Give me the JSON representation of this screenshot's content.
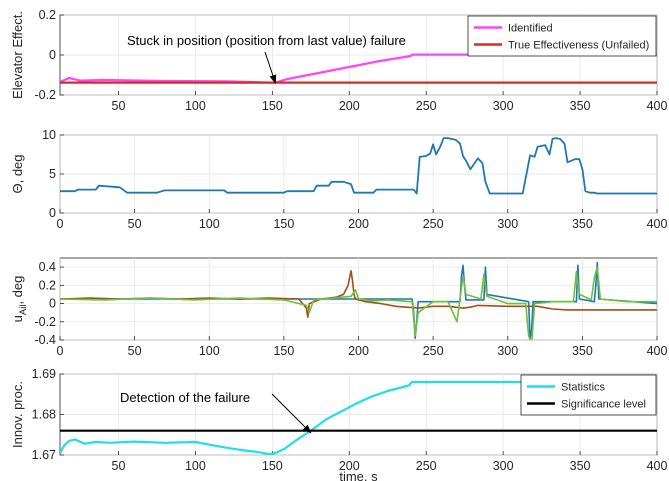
{
  "chart_data": [
    {
      "type": "line",
      "ylabel": "Elevator Effect.",
      "xlim": [
        12,
        400
      ],
      "ylim": [
        -0.2,
        0.2
      ],
      "xticks": [
        50,
        100,
        150,
        200,
        250,
        300,
        350,
        400
      ],
      "yticks": [
        -0.2,
        0,
        0.2
      ],
      "ytick_labels": [
        "-0.2",
        "0",
        "0.2"
      ],
      "grid": true,
      "legend": {
        "placement": "top-right"
      },
      "annotation": {
        "text": "Stuck in position (position from last value) failure",
        "points_to": [
          152,
          -0.14
        ]
      },
      "series": [
        {
          "name": "Identified",
          "color": "#ff44ff",
          "x": [
            12,
            18,
            25,
            40,
            80,
            120,
            150,
            152,
            160,
            180,
            200,
            220,
            240,
            241,
            300,
            400
          ],
          "y": [
            -0.135,
            -0.115,
            -0.128,
            -0.125,
            -0.13,
            -0.132,
            -0.138,
            -0.138,
            -0.12,
            -0.09,
            -0.06,
            -0.03,
            -0.005,
            0.002,
            0.002,
            0.002
          ]
        },
        {
          "name": "True Effectiveness (Unfailed)",
          "color": "#d62d20",
          "x": [
            12,
            400
          ],
          "y": [
            -0.138,
            -0.138
          ]
        }
      ]
    },
    {
      "type": "line",
      "ylabel": "Θ, deg",
      "xlim": [
        0,
        400
      ],
      "ylim": [
        0,
        10
      ],
      "xticks": [
        0,
        50,
        100,
        150,
        200,
        250,
        300,
        350,
        400
      ],
      "yticks": [
        0,
        5,
        10
      ],
      "ytick_labels": [
        "0",
        "5",
        "10"
      ],
      "grid": true,
      "series": [
        {
          "name": "",
          "color": "#1f77b4",
          "x": [
            0,
            10,
            12,
            24,
            26,
            40,
            45,
            65,
            70,
            110,
            112,
            150,
            152,
            170,
            172,
            180,
            182,
            190,
            195,
            197,
            210,
            212,
            237,
            239,
            241,
            245,
            248,
            250,
            252,
            255,
            257,
            260,
            262,
            265,
            268,
            270,
            272,
            275,
            280,
            283,
            285,
            288,
            290,
            310,
            315,
            318,
            320,
            325,
            328,
            330,
            332,
            335,
            338,
            340,
            345,
            348,
            350,
            352,
            355,
            358,
            360,
            365,
            400
          ],
          "y": [
            2.8,
            2.8,
            3.0,
            3.0,
            3.5,
            3.3,
            2.6,
            2.6,
            2.9,
            2.9,
            2.6,
            2.6,
            2.8,
            2.8,
            3.5,
            3.5,
            4.0,
            4.0,
            3.7,
            2.6,
            2.6,
            3.0,
            3.0,
            2.5,
            7.2,
            7.3,
            7.6,
            8.8,
            7.5,
            8.6,
            9.6,
            9.6,
            9.5,
            9.4,
            8.9,
            7.3,
            6.7,
            5.6,
            7.0,
            6.4,
            4.0,
            2.5,
            2.5,
            2.5,
            7.4,
            7.2,
            8.5,
            8.7,
            7.5,
            9.5,
            9.6,
            9.5,
            8.9,
            6.5,
            6.9,
            6.9,
            5.6,
            2.8,
            2.6,
            2.6,
            2.5,
            2.5,
            2.5
          ]
        }
      ]
    },
    {
      "type": "line",
      "ylabel": "u_Ail, deg",
      "xlim": [
        0,
        400
      ],
      "ylim": [
        -0.4,
        0.5
      ],
      "xticks": [
        0,
        50,
        100,
        150,
        200,
        250,
        300,
        350,
        400
      ],
      "yticks": [
        -0.4,
        -0.2,
        0,
        0.2,
        0.4
      ],
      "ytick_labels": [
        "-0.4",
        "-0.2",
        "0",
        "0.2",
        "0.4"
      ],
      "grid": true,
      "series": [
        {
          "name": "",
          "color": "#1f77b4",
          "x": [
            0,
            236,
            237,
            238,
            239,
            240,
            268,
            269,
            270,
            271,
            272,
            284,
            285,
            286,
            314,
            315,
            316,
            317,
            346,
            347,
            348,
            358,
            359,
            360,
            361,
            400
          ],
          "y": [
            0.05,
            0.05,
            -0.1,
            -0.38,
            -0.2,
            0.02,
            0.02,
            0.3,
            0.42,
            0.2,
            0.04,
            0.04,
            0.4,
            0.1,
            0.02,
            -0.38,
            -0.3,
            0.02,
            0.02,
            0.42,
            0.05,
            0.02,
            0.2,
            0.45,
            0.05,
            0.0
          ]
        },
        {
          "name": "",
          "color": "#a84d1a",
          "x": [
            0,
            20,
            40,
            60,
            80,
            100,
            120,
            140,
            160,
            165,
            166,
            167,
            175,
            185,
            190,
            193,
            195,
            196,
            197,
            198,
            200,
            205,
            215,
            225,
            240,
            250,
            260,
            270,
            275,
            280,
            300,
            320,
            330,
            340,
            360,
            380,
            400
          ],
          "y": [
            0.05,
            0.06,
            0.05,
            0.06,
            0.05,
            0.06,
            0.05,
            0.06,
            0.05,
            -0.05,
            -0.15,
            0.0,
            0.05,
            0.07,
            0.1,
            0.2,
            0.36,
            0.25,
            0.1,
            0.05,
            0.04,
            0.02,
            0.0,
            -0.03,
            -0.05,
            -0.03,
            -0.03,
            -0.05,
            -0.04,
            -0.02,
            -0.03,
            -0.03,
            -0.06,
            -0.07,
            -0.07,
            -0.07,
            -0.07
          ]
        },
        {
          "name": "",
          "color": "#6dc03c",
          "x": [
            0,
            30,
            60,
            90,
            120,
            150,
            165,
            167,
            170,
            195,
            198,
            200,
            210,
            220,
            236,
            238,
            240,
            250,
            260,
            266,
            268,
            270,
            272,
            282,
            284,
            286,
            300,
            312,
            314,
            316,
            318,
            330,
            344,
            346,
            348,
            356,
            358,
            360,
            362,
            380,
            400
          ],
          "y": [
            0.05,
            0.04,
            0.06,
            0.04,
            0.06,
            0.04,
            -0.02,
            -0.1,
            0.04,
            0.08,
            0.15,
            0.05,
            0.03,
            0.04,
            0.02,
            -0.35,
            -0.1,
            0.02,
            0.02,
            -0.2,
            0.05,
            0.3,
            0.1,
            0.05,
            0.32,
            0.08,
            0.0,
            0.0,
            -0.35,
            -0.45,
            0.0,
            0.02,
            0.02,
            0.35,
            0.1,
            0.04,
            0.28,
            0.4,
            0.05,
            0.02,
            0.02
          ]
        }
      ]
    },
    {
      "type": "line",
      "ylabel": "Innov. proc.",
      "xlabel": "time, s",
      "xlim": [
        12,
        400
      ],
      "ylim": [
        1.67,
        1.69
      ],
      "xticks": [
        50,
        100,
        150,
        200,
        250,
        300,
        350,
        400
      ],
      "yticks": [
        1.67,
        1.68,
        1.69
      ],
      "ytick_labels": [
        "1.67",
        "1.68",
        "1.69"
      ],
      "grid": true,
      "legend": {
        "placement": "top-right"
      },
      "annotation": {
        "text": "Detection of the failure",
        "points_to": [
          175,
          1.6755
        ]
      },
      "series": [
        {
          "name": "Statistics",
          "color": "#1fdfe6",
          "x": [
            12,
            15,
            18,
            22,
            28,
            35,
            45,
            60,
            80,
            100,
            110,
            120,
            130,
            140,
            148,
            152,
            158,
            165,
            175,
            185,
            195,
            205,
            215,
            225,
            235,
            239,
            240,
            241,
            300,
            341
          ],
          "y": [
            1.6705,
            1.6725,
            1.6735,
            1.6738,
            1.6728,
            1.6732,
            1.673,
            1.6733,
            1.673,
            1.6732,
            1.6725,
            1.6718,
            1.6712,
            1.6708,
            1.6702,
            1.6705,
            1.6715,
            1.6735,
            1.676,
            1.6788,
            1.6808,
            1.6828,
            1.6845,
            1.6858,
            1.6868,
            1.6872,
            1.6878,
            1.688,
            1.688,
            1.688
          ]
        },
        {
          "name": "Significance level",
          "color": "#000000",
          "x": [
            12,
            400
          ],
          "y": [
            1.676,
            1.676
          ]
        }
      ]
    }
  ]
}
